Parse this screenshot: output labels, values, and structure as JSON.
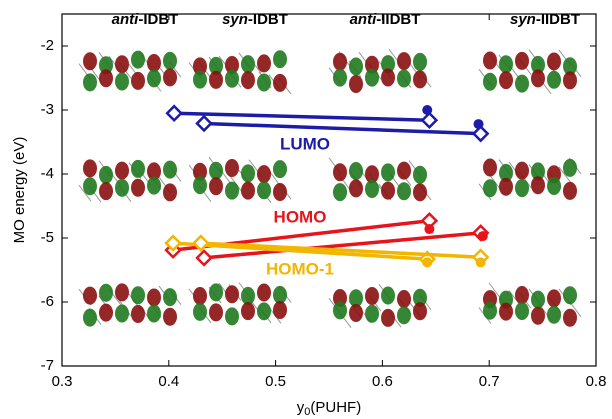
{
  "chart_data": {
    "type": "line",
    "x_label": {
      "base": "y",
      "sub": "0",
      "rest": "(PUHF)"
    },
    "y_label": "MO energy (eV)",
    "xlim": [
      0.3,
      0.8
    ],
    "xticks": [
      0.3,
      0.4,
      0.5,
      0.6,
      0.7,
      0.8
    ],
    "ylim": [
      -7,
      -1.5
    ],
    "yticks": [
      -7,
      -6,
      -5,
      -4,
      -3,
      -2
    ],
    "molecules": [
      {
        "isomer": "anti",
        "core": "-IDBT"
      },
      {
        "isomer": "syn",
        "core": "-IDBT"
      },
      {
        "isomer": "anti",
        "core": "-IIDBT"
      },
      {
        "isomer": "syn",
        "core": "-IIDBT"
      }
    ],
    "groups": [
      {
        "name": "LUMO",
        "color": "#1c1ca8",
        "lines": [
          {
            "x": [
              0.405,
              0.644
            ],
            "values": [
              -3.05,
              -3.16
            ]
          },
          {
            "x": [
              0.433,
              0.692
            ],
            "values": [
              -3.21,
              -3.37
            ]
          }
        ],
        "points": {
          "x": [
            0.642,
            0.69
          ],
          "values": [
            -3.0,
            -3.22
          ]
        }
      },
      {
        "name": "HOMO",
        "color": "#e8141c",
        "lines": [
          {
            "x": [
              0.404,
              0.644
            ],
            "values": [
              -5.19,
              -4.73
            ]
          },
          {
            "x": [
              0.433,
              0.692
            ],
            "values": [
              -5.31,
              -4.92
            ]
          }
        ],
        "points": {
          "x": [
            0.644,
            0.694
          ],
          "values": [
            -4.86,
            -4.97
          ]
        }
      },
      {
        "name": "HOMO-1",
        "color": "#f2b600",
        "lines": [
          {
            "x": [
              0.404,
              0.642
            ],
            "values": [
              -5.08,
              -5.33
            ]
          },
          {
            "x": [
              0.43,
              0.692
            ],
            "values": [
              -5.08,
              -5.3
            ]
          }
        ],
        "points": {
          "x": [
            0.642,
            0.692
          ],
          "values": [
            -5.38,
            -5.38
          ]
        }
      }
    ]
  }
}
